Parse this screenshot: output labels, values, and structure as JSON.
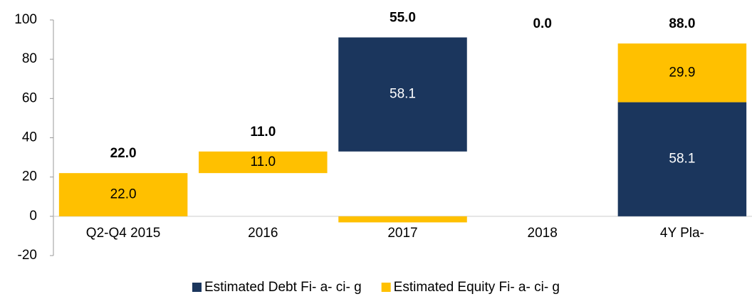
{
  "chart_data": {
    "type": "waterfall",
    "categories": [
      "Q2-Q4 2015",
      "2016",
      "2017",
      "2018",
      "4Y Pla-"
    ],
    "series": [
      {
        "name": "Estimated Debt Fi- a- ci- g",
        "color": "#1b365d",
        "label_color": "#ffffff",
        "values": [
          null,
          null,
          58.1,
          null,
          58.1
        ],
        "value_labels": [
          null,
          null,
          "58.1",
          null,
          "58.1"
        ]
      },
      {
        "name": "Estimated Equity Fi- a- ci- g",
        "color": "#ffc000",
        "label_color": "#000000",
        "values": [
          22,
          11,
          -3.1,
          null,
          29.9
        ],
        "value_labels": [
          "22.0",
          "11.0",
          null,
          null,
          "29.9"
        ]
      }
    ],
    "totals": [
      22,
      11,
      55,
      0,
      88
    ],
    "total_labels": [
      "22.0",
      "11.0",
      "55.0",
      "0.0",
      "88.0"
    ],
    "ylim": [
      -20,
      100
    ],
    "yticks": [
      -20,
      0,
      20,
      40,
      60,
      80,
      100
    ]
  }
}
